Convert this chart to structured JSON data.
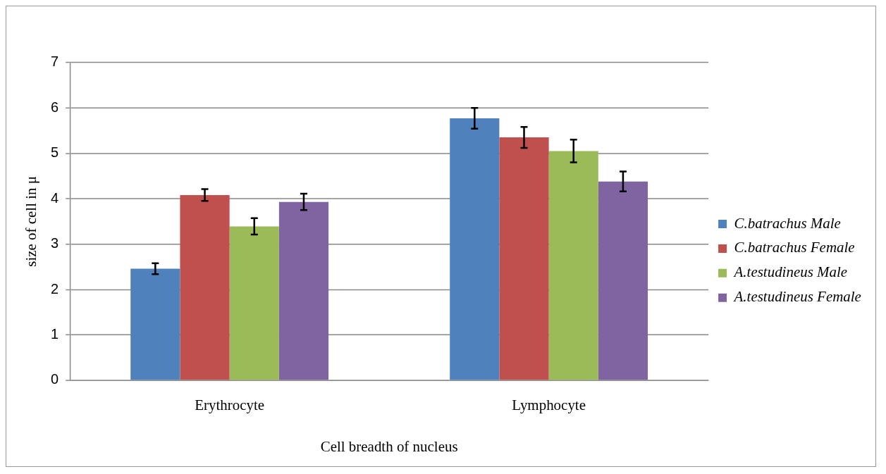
{
  "chart_data": {
    "type": "bar",
    "xlabel": "Cell breadth of nucleus",
    "ylabel": "size of cell in μ",
    "categories": [
      "Erythrocyte",
      "Lymphocyte"
    ],
    "series": [
      {
        "name": "C.batrachus Male",
        "color": "#4f81bd",
        "values": [
          2.46,
          5.77
        ],
        "errors": [
          0.12,
          0.23
        ]
      },
      {
        "name": "C.batrachus Female",
        "color": "#c0504d",
        "values": [
          4.08,
          5.35
        ],
        "errors": [
          0.13,
          0.23
        ]
      },
      {
        "name": "A.testudineus Male",
        "color": "#9bbb59",
        "values": [
          3.39,
          5.05
        ],
        "errors": [
          0.18,
          0.25
        ]
      },
      {
        "name": "A.testudineus Female",
        "color": "#8064a2",
        "values": [
          3.93,
          4.38
        ],
        "errors": [
          0.18,
          0.22
        ]
      }
    ],
    "ylim": [
      0,
      7
    ],
    "yticks": [
      0,
      1,
      2,
      3,
      4,
      5,
      6,
      7
    ],
    "grid": "y",
    "legend": "right"
  }
}
